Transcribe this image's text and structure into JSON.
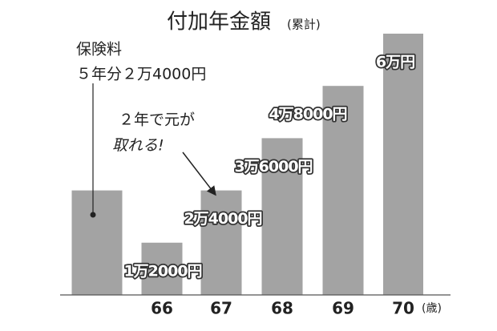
{
  "chart_data": {
    "type": "bar",
    "title": "付加年金額",
    "subtitle": "(累計)",
    "categories": [
      null,
      "66",
      "67",
      "68",
      "69",
      "70"
    ],
    "x_label": "(歳)",
    "values": [
      24000,
      12000,
      24000,
      36000,
      48000,
      60000
    ],
    "value_labels": [
      null,
      "1万2000円",
      "2万4000円",
      "3万6000円",
      "4万8000円",
      "6万円"
    ],
    "color": "#a3a3a3",
    "ylim": [
      0,
      60000
    ],
    "annotations": [
      "保険料",
      "５年分２万4000円",
      "２年で元が",
      "取れる!"
    ]
  }
}
